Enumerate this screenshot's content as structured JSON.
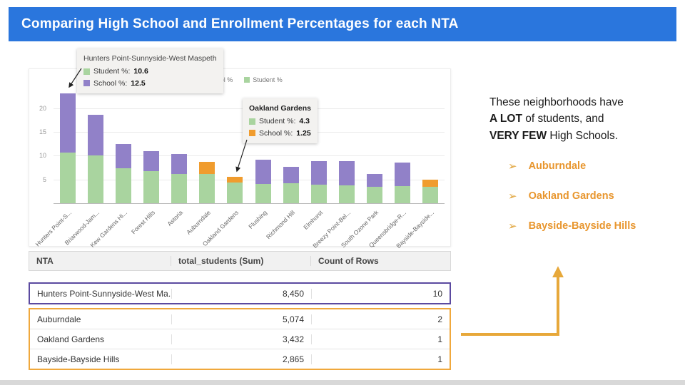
{
  "slide": {
    "title": "Comparing High School and Enrollment Percentages for each NTA"
  },
  "legend": {
    "school_label": "School %",
    "student_label": "Student %"
  },
  "tooltips": {
    "hunters": {
      "title": "Hunters Point-Sunnyside-West Maspeth",
      "student_label": "Student %:",
      "student_value": "10.6",
      "school_label": "School %:",
      "school_value": "12.5"
    },
    "oakland": {
      "title": "Oakland Gardens",
      "student_label": "Student %:",
      "student_value": "4.3",
      "school_label": "School %:",
      "school_value": "1.25"
    }
  },
  "chart_data": {
    "type": "bar",
    "stacked": true,
    "title": "",
    "xlabel": "",
    "ylabel": "",
    "categories": [
      "Hunters Point-S...",
      "Briarwood-Jam...",
      "Kew Gardens Hi...",
      "Forest Hills",
      "Astoria",
      "Auburndale",
      "Oakland Gardens",
      "Flushing",
      "Richmond Hill",
      "Elmhurst",
      "Breezy Point-Bel...",
      "South Ozone Park",
      "Queensbridge-R...",
      "Bayside-Bayside..."
    ],
    "series": [
      {
        "name": "Student %",
        "color": "#a9d49f",
        "values": [
          10.6,
          10.0,
          7.4,
          6.8,
          6.2,
          6.1,
          4.3,
          4.0,
          4.2,
          3.9,
          3.8,
          3.4,
          3.6,
          3.4
        ]
      },
      {
        "name": "School %",
        "color": "#9181c8",
        "values": [
          12.5,
          8.6,
          5.0,
          4.2,
          4.2,
          2.6,
          1.25,
          5.2,
          3.4,
          5.0,
          5.0,
          2.7,
          5.0,
          1.6
        ]
      }
    ],
    "highlight_color": "#f09c2e",
    "highlight_indices": [
      5,
      6,
      13
    ],
    "highlight_categories": [
      "Auburndale",
      "Oakland Gardens",
      "Bayside-Bayside..."
    ],
    "yticks": [
      5,
      10,
      15,
      20
    ],
    "ylim": [
      0,
      24
    ],
    "legend_position": "top",
    "grid": true
  },
  "table": {
    "headers": [
      "NTA",
      "total_students (Sum)",
      "Count of Rows"
    ],
    "highlight_row": {
      "nta": "Hunters Point-Sunnyside-West Ma...",
      "total": "8,450",
      "count": "10"
    },
    "orange_rows": [
      {
        "nta": "Auburndale",
        "total": "5,074",
        "count": "2"
      },
      {
        "nta": "Oakland Gardens",
        "total": "3,432",
        "count": "1"
      },
      {
        "nta": "Bayside-Bayside Hills",
        "total": "2,865",
        "count": "1"
      }
    ]
  },
  "note": {
    "line1": "These neighborhoods have",
    "line2_bold": "A LOT",
    "line2_rest": " of students, and",
    "line3_bold": "VERY FEW",
    "line3_rest": " High Schools."
  },
  "bullets": {
    "marker": "➢",
    "items": [
      "Auburndale",
      "Oakland Gardens",
      "Bayside-Bayside Hills"
    ]
  },
  "colors": {
    "header_bg": "#2a76dd",
    "purple": "#9181c8",
    "green": "#a9d49f",
    "orange": "#f09c2e",
    "bullet_text": "#e8962e",
    "arrow": "#e7a83a",
    "row_border_purple": "#5b4aa0",
    "row_border_orange": "#f0a83c"
  }
}
